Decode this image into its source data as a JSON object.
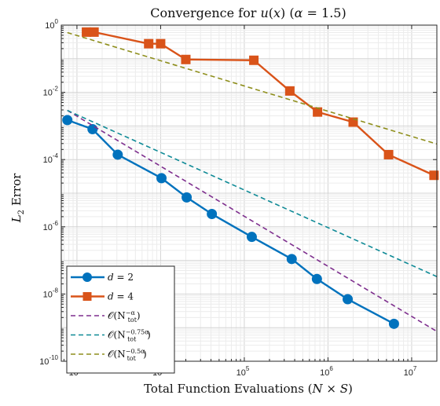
{
  "chart_data": {
    "type": "line",
    "title": "Convergence for u(x) (α = 1.5)",
    "xlabel": "Total Function Evaluations (N × S)",
    "ylabel": "L₂ Error",
    "xscale": "log",
    "yscale": "log",
    "xlim": [
      650,
      20000000
    ],
    "ylim": [
      1e-10,
      1
    ],
    "x_ticks": [
      {
        "base": "10",
        "exp": "3"
      },
      {
        "base": "10",
        "exp": "4"
      },
      {
        "base": "10",
        "exp": "5"
      },
      {
        "base": "10",
        "exp": "6"
      },
      {
        "base": "10",
        "exp": "7"
      }
    ],
    "y_ticks": [
      {
        "base": "10",
        "exp": "-10"
      },
      {
        "base": "10",
        "exp": "-8"
      },
      {
        "base": "10",
        "exp": "-6"
      },
      {
        "base": "10",
        "exp": "-4"
      },
      {
        "base": "10",
        "exp": "-2"
      },
      {
        "base": "10",
        "exp": "0"
      }
    ],
    "grid": true,
    "legend_position": "bottom-left",
    "series": [
      {
        "name": "d = 2",
        "color": "#0072BD",
        "marker": "circle",
        "style": "solid",
        "x": [
          768,
          1536,
          3072,
          10240,
          20480,
          40960,
          122880,
          368640,
          737280,
          1720320,
          6144000
        ],
        "y": [
          0.0015,
          0.0008,
          0.00014,
          2.8e-05,
          7.5e-06,
          2.4e-06,
          5e-07,
          1.1e-07,
          2.8e-08,
          7e-09,
          1.3e-09
        ]
      },
      {
        "name": "d = 4",
        "color": "#D95319",
        "marker": "square",
        "style": "solid",
        "x": [
          1300,
          1600,
          7200,
          10000,
          20000,
          130000,
          350000,
          750000,
          2000000,
          5300000,
          18500000
        ],
        "y": [
          0.62,
          0.62,
          0.28,
          0.28,
          0.095,
          0.09,
          0.011,
          0.0026,
          0.0013,
          0.00014,
          3.4e-05
        ]
      },
      {
        "name": "O(N_tot^{-α})",
        "color": "#7E2F8E",
        "style": "dashed",
        "x": [
          768,
          20000000
        ],
        "y": [
          0.0029,
          7.7e-10
        ]
      },
      {
        "name": "O(N_tot^{-0.75α})",
        "color": "#0E8A96",
        "style": "dashed",
        "x": [
          768,
          20000000
        ],
        "y": [
          0.0029,
          3.3e-08
        ]
      },
      {
        "name": "O(N_tot^{-0.5α})",
        "color": "#8E8E1B",
        "style": "dashed",
        "x": [
          768,
          20000000
        ],
        "y": [
          0.6,
          0.00029
        ]
      }
    ],
    "legend": [
      {
        "math": "d = 2"
      },
      {
        "math": "d = 4"
      },
      {
        "pre": "𝒪(N",
        "sub": "tot",
        "sup": "−α",
        "post": ")"
      },
      {
        "pre": "𝒪(N",
        "sub": "tot",
        "sup": "−0.75α",
        "post": ")"
      },
      {
        "pre": "𝒪(N",
        "sub": "tot",
        "sup": "−0.5α",
        "post": ")"
      }
    ]
  }
}
